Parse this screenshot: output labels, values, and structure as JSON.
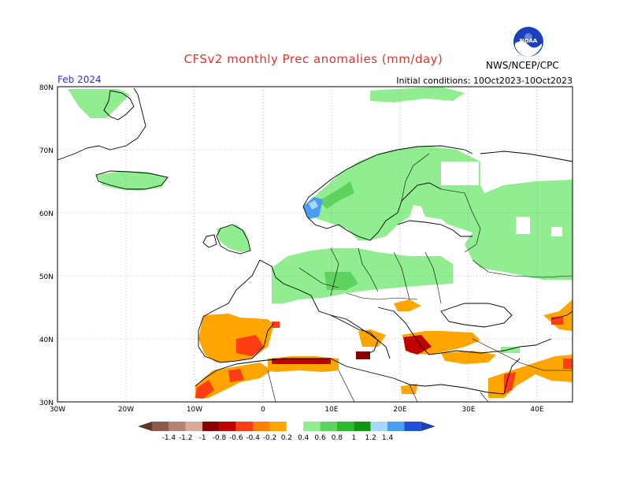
{
  "header": {
    "title": "CFSv2 monthly Prec anomalies (mm/day)",
    "valid_label": "Feb 2024",
    "initial_conditions": "Initial conditions: 10Oct2023-10Oct2023",
    "agency": "NWS/NCEP/CPC",
    "logo_text": "NOAA"
  },
  "map": {
    "lat_ticks": [
      "80N",
      "70N",
      "60N",
      "50N",
      "40N",
      "30N"
    ],
    "lon_ticks": [
      "30W",
      "20W",
      "10W",
      "0",
      "10E",
      "20E",
      "30E",
      "40E"
    ],
    "land_color": "#ffffff",
    "grid_style": "dotted"
  },
  "colorbar": {
    "labels": [
      "-1.4",
      "-1.2",
      "-1",
      "-0.8",
      "-0.6",
      "-0.4",
      "-0.2",
      "0.2",
      "0.4",
      "0.6",
      "0.8",
      "1",
      "1.2",
      "1.4"
    ],
    "colors": [
      "#8b5a4a",
      "#b38271",
      "#d9a99a",
      "#8b0000",
      "#c00000",
      "#ff3c14",
      "#ff7f00",
      "#ffa500",
      "#ffffff",
      "#90ee90",
      "#5fd35f",
      "#2eb82e",
      "#129612",
      "#a6d8ff",
      "#4a9df0",
      "#2050d8"
    ]
  },
  "anomalies": {
    "wet_regions": [
      "Scandinavia",
      "British Isles",
      "Central Europe",
      "Western Russia",
      "Iceland",
      "Svalbard"
    ],
    "dry_regions": [
      "Iberian Peninsula",
      "Morocco",
      "Algeria",
      "Sicily",
      "Greece",
      "Turkey",
      "Middle East"
    ],
    "wettest_region": "Western Norway"
  }
}
